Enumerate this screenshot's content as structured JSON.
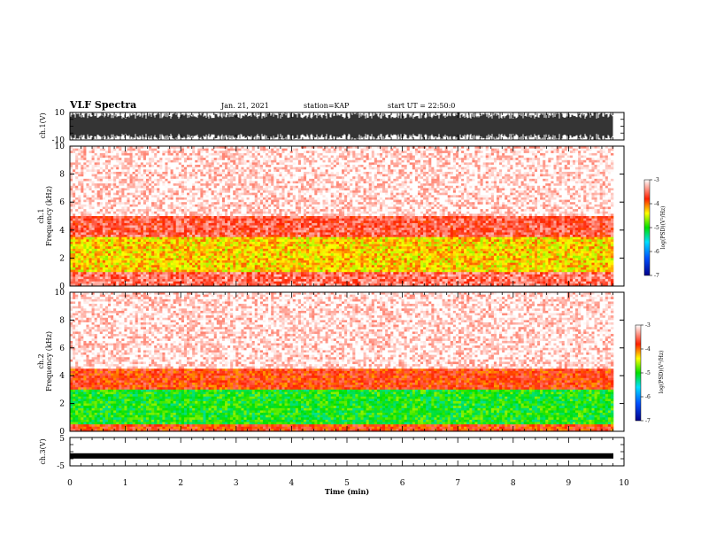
{
  "header": {
    "title": "VLF Spectra",
    "date": "Jan. 21, 2021",
    "station": "station=KAP",
    "start": "start UT = 22:50:0"
  },
  "chart_data": [
    {
      "type": "line",
      "ylabel": "ch.1(V)",
      "ylim": [
        -10,
        10
      ],
      "yticklabels": [
        "10",
        "-10"
      ],
      "xlim": [
        0,
        10
      ],
      "description_series": "broadband waveform, saturating near ±10 V"
    },
    {
      "type": "heatmap",
      "ylabel_line1": "ch.1",
      "ylabel_line2": "Frequency (kHz)",
      "ylim": [
        0,
        10
      ],
      "yticklabels": [
        "0",
        "2",
        "4",
        "6",
        "8",
        "10"
      ],
      "xlim": [
        0,
        10
      ],
      "colorbar": {
        "label": "log(PSD)(V²/Hz)",
        "ticks": [
          "-3",
          "-4",
          "-5",
          "-6",
          "-7"
        ],
        "range": [
          -7,
          -3
        ]
      },
      "band_levels": [
        {
          "freq_khz": [
            0.0,
            1.0
          ],
          "log_psd": -3.5
        },
        {
          "freq_khz": [
            1.0,
            3.5
          ],
          "log_psd": -4.3
        },
        {
          "freq_khz": [
            3.5,
            5.0
          ],
          "log_psd": -3.6
        },
        {
          "freq_khz": [
            5.0,
            10.0
          ],
          "log_psd": -3.1
        }
      ]
    },
    {
      "type": "heatmap",
      "ylabel_line1": "ch.2",
      "ylabel_line2": "Frequency (kHz)",
      "ylim": [
        0,
        10
      ],
      "yticklabels": [
        "0",
        "2",
        "4",
        "6",
        "8",
        "10"
      ],
      "xlim": [
        0,
        10
      ],
      "colorbar": {
        "label": "log(PSD)(V²/Hz)",
        "ticks": [
          "-3",
          "-4",
          "-5",
          "-6",
          "-7"
        ],
        "range": [
          -7,
          -3
        ]
      },
      "band_levels": [
        {
          "freq_khz": [
            0.0,
            0.5
          ],
          "log_psd": -3.8
        },
        {
          "freq_khz": [
            0.5,
            3.0
          ],
          "log_psd": -5.0
        },
        {
          "freq_khz": [
            3.0,
            4.5
          ],
          "log_psd": -3.8
        },
        {
          "freq_khz": [
            4.5,
            10.0
          ],
          "log_psd": -3.1
        }
      ]
    },
    {
      "type": "line",
      "ylabel": "ch.3(V)",
      "ylim": [
        -5,
        5
      ],
      "yticklabels": [
        "5",
        "-5"
      ],
      "xlim": [
        0,
        10
      ],
      "xlabel": "Time (min)",
      "xticklabels": [
        "0",
        "1",
        "2",
        "3",
        "4",
        "5",
        "6",
        "7",
        "8",
        "9",
        "10"
      ],
      "level_v": -1.5
    }
  ]
}
